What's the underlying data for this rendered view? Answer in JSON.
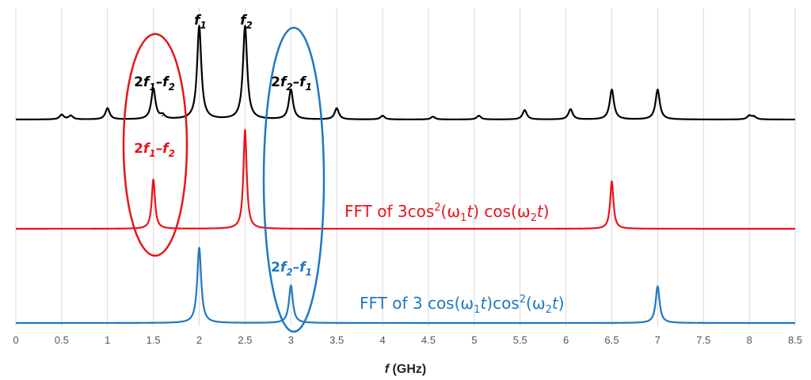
{
  "chart_data": {
    "type": "line",
    "xlabel_var": "f",
    "xlabel_unit": " (GHz)",
    "xlim": [
      0,
      8.5
    ],
    "xticks": [
      "0",
      "0.5",
      "1",
      "1.5",
      "2",
      "2.5",
      "3",
      "3.5",
      "4",
      "4.5",
      "5",
      "5.5",
      "6",
      "6.5",
      "7",
      "7.5",
      "8",
      "8.5"
    ],
    "grid": true,
    "series": [
      {
        "color": "#000000",
        "peaks": [
          {
            "x": 0.5,
            "h": 0.05
          },
          {
            "x": 0.6,
            "h": 0.04
          },
          {
            "x": 1.0,
            "h": 0.12
          },
          {
            "x": 1.5,
            "h": 0.33
          },
          {
            "x": 1.6,
            "h": 0.04
          },
          {
            "x": 2.0,
            "h": 1.0
          },
          {
            "x": 2.5,
            "h": 1.0
          },
          {
            "x": 3.0,
            "h": 0.32
          },
          {
            "x": 3.5,
            "h": 0.12
          },
          {
            "x": 4.0,
            "h": 0.04
          },
          {
            "x": 4.55,
            "h": 0.03
          },
          {
            "x": 5.05,
            "h": 0.04
          },
          {
            "x": 5.55,
            "h": 0.1
          },
          {
            "x": 6.05,
            "h": 0.11
          },
          {
            "x": 6.5,
            "h": 0.32
          },
          {
            "x": 7.0,
            "h": 0.32
          },
          {
            "x": 8.0,
            "h": 0.04
          },
          {
            "x": 8.05,
            "h": 0.03
          }
        ]
      },
      {
        "color": "#e8141c",
        "peaks": [
          {
            "x": 1.5,
            "h": 0.5
          },
          {
            "x": 2.5,
            "h": 1.0
          },
          {
            "x": 6.5,
            "h": 0.48
          }
        ]
      },
      {
        "color": "#1f78c1",
        "peaks": [
          {
            "x": 2.0,
            "h": 0.88
          },
          {
            "x": 3.0,
            "h": 0.44
          },
          {
            "x": 7.0,
            "h": 0.43
          }
        ]
      }
    ],
    "peak_labels": [
      {
        "var": "f",
        "sub": "1"
      },
      {
        "var": "f",
        "sub": "2"
      }
    ],
    "annotations": {
      "black_2f1_f2": {
        "a": "2",
        "b": "f",
        "c": "1",
        "d": "–",
        "e": "f",
        "g": "2"
      },
      "black_2f2_f1": {
        "a": "2",
        "b": "f",
        "c": "2",
        "d": "–",
        "e": "f",
        "g": "1"
      },
      "red_2f1_f2": {
        "a": "2",
        "b": "f",
        "c": "1",
        "d": "–",
        "e": "f",
        "g": "2"
      },
      "blue_2f2_f1": {
        "a": "2",
        "b": "f",
        "c": "2",
        "d": "–",
        "e": "f",
        "g": "1"
      }
    },
    "fft_labels": {
      "red": {
        "prefix": "FFT of 3cos",
        "sq": "2",
        "w1": "(ω",
        "s1": "1",
        "t1": "t",
        "mid": ") cos(ω",
        "s2": "2",
        "t2": "t",
        "end": ")"
      },
      "blue": {
        "prefix": "FFT of 3 cos(ω",
        "s1": "1",
        "t1": "t",
        "mid": ")cos",
        "sq": "2",
        "w2": "(ω",
        "s2": "2",
        "t2": "t",
        "end": ")"
      }
    },
    "colors": {
      "black": "#000000",
      "red": "#e8141c",
      "blue": "#1f78c1",
      "grid": "#d9d9d9"
    }
  }
}
